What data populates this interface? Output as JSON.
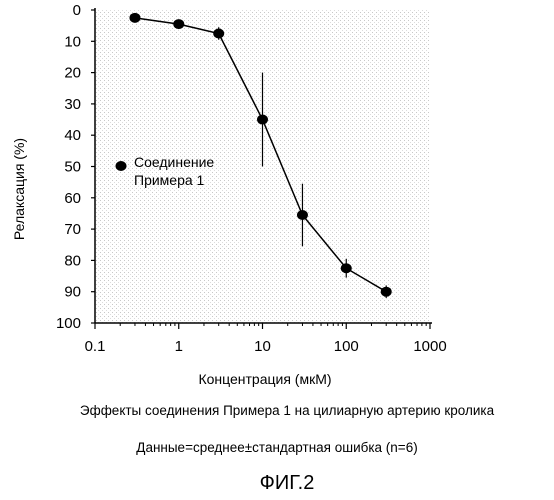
{
  "chart_data": {
    "type": "scatter",
    "title": "",
    "xlabel": "Концентрация (мкМ)",
    "ylabel": "Релаксация (%)",
    "xscale": "log",
    "xlim": [
      0.1,
      1000
    ],
    "ylim": [
      0,
      100
    ],
    "y_inverted": true,
    "x_ticks": [
      "0.1",
      "1",
      "10",
      "100",
      "1000"
    ],
    "x_tick_values": [
      0.1,
      1,
      10,
      100,
      1000
    ],
    "y_ticks": [
      "0",
      "10",
      "20",
      "30",
      "40",
      "50",
      "60",
      "70",
      "80",
      "90",
      "100"
    ],
    "y_tick_values": [
      0,
      10,
      20,
      30,
      40,
      50,
      60,
      70,
      80,
      90,
      100
    ],
    "legend_position": "center-left",
    "series": [
      {
        "name": "Соединение Примера 1",
        "legend_lines": [
          "Соединение",
          "Примера 1"
        ],
        "x": [
          0.3,
          1,
          3,
          10,
          30,
          100,
          300
        ],
        "y": [
          2.5,
          4.5,
          7.5,
          35,
          65.5,
          82.5,
          90
        ],
        "error": [
          0,
          0,
          2,
          15,
          10,
          3,
          2
        ],
        "marker": "filled-circle",
        "line": true
      }
    ]
  },
  "caption": {
    "line1": "Эффекты соединения Примера 1 на цилиарную артерию кролика",
    "line2": "Данные=среднее±стандартная ошибка (n=6)",
    "figure_label": "ФИГ.2"
  }
}
